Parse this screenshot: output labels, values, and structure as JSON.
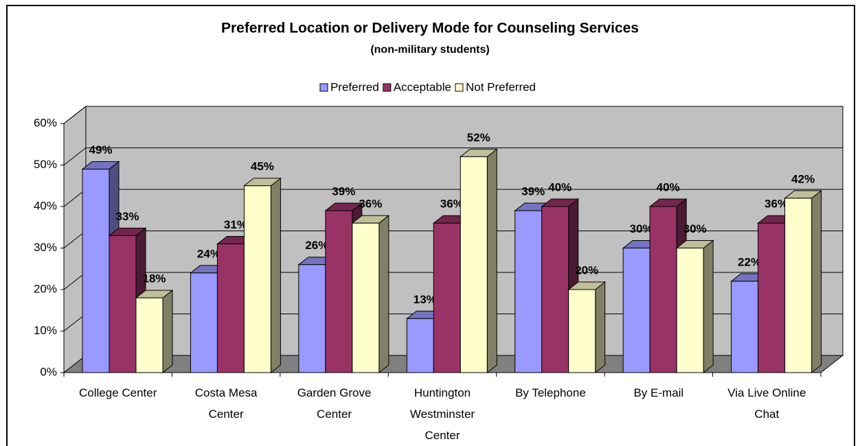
{
  "chart_data": {
    "type": "bar3d",
    "title": "Preferred Location or Delivery Mode for Counseling Services",
    "subtitle": "(non-military students)",
    "categories": [
      "College Center",
      "Costa Mesa Center",
      "Garden Grove Center",
      "Huntington Westminster Center",
      "By Telephone",
      "By E-mail",
      "Via Live Online Chat"
    ],
    "series": [
      {
        "name": "Preferred",
        "color": "#9999ff",
        "values": [
          49,
          24,
          26,
          13,
          39,
          30,
          22
        ],
        "value_labels": [
          "49%",
          "24%",
          "26%",
          "13%",
          "39%",
          "30%",
          "22%"
        ]
      },
      {
        "name": "Acceptable",
        "color": "#993366",
        "values": [
          33,
          31,
          39,
          36,
          40,
          40,
          36
        ],
        "value_labels": [
          "33%",
          "31%",
          "39%",
          "36%",
          "40%",
          "40%",
          "36%"
        ]
      },
      {
        "name": "Not Preferred",
        "color": "#ffffcc",
        "values": [
          18,
          45,
          36,
          52,
          20,
          30,
          42
        ],
        "value_labels": [
          "18%",
          "45%",
          "36%",
          "52%",
          "20%",
          "30%",
          "42%"
        ]
      }
    ],
    "ylim": [
      0,
      60
    ],
    "yticks": [
      {
        "value": 0,
        "label": "0%"
      },
      {
        "value": 10,
        "label": "10%"
      },
      {
        "value": 20,
        "label": "20%"
      },
      {
        "value": 30,
        "label": "30%"
      },
      {
        "value": 40,
        "label": "40%"
      },
      {
        "value": 50,
        "label": "50%"
      },
      {
        "value": 60,
        "label": "60%"
      }
    ],
    "grid": true,
    "legend": "top"
  }
}
